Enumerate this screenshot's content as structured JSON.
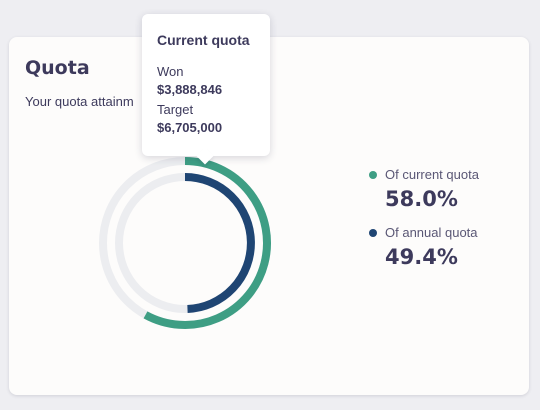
{
  "card": {
    "title": "Quota",
    "subtitle": "Your quota attainm"
  },
  "tooltip": {
    "title": "Current quota",
    "won_label": "Won",
    "won_value": "$3,888,846",
    "target_label": "Target",
    "target_value": "$6,705,000"
  },
  "legend": [
    {
      "label": "Of current quota",
      "value": "58.0%",
      "color": "#3e9e84"
    },
    {
      "label": "Of annual quota",
      "value": "49.4%",
      "color": "#1f4573"
    }
  ],
  "chart_data": {
    "type": "donut",
    "series": [
      {
        "name": "Of current quota",
        "value": 58.0,
        "color": "#3e9e84"
      },
      {
        "name": "Of annual quota",
        "value": 49.4,
        "color": "#1f4573"
      }
    ],
    "track_color": "#ecedf0"
  }
}
